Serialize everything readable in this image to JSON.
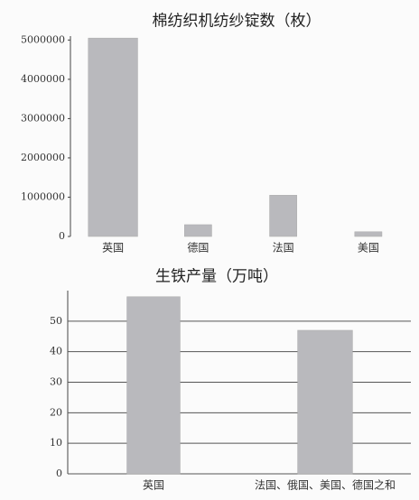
{
  "chart_data": [
    {
      "type": "bar",
      "title": "棉纺织机纺纱锭数（枚）",
      "categories": [
        "英国",
        "德国",
        "法国",
        "美国"
      ],
      "values": [
        5050000,
        300000,
        1050000,
        120000
      ],
      "color": "#b9b9bd",
      "ylim": [
        0,
        5100000
      ],
      "yticks": [
        0,
        1000000,
        2000000,
        3000000,
        4000000,
        5000000
      ],
      "grid": false
    },
    {
      "type": "bar",
      "title": "生铁产量（万吨）",
      "categories": [
        "英国",
        "法国、俄国、美国、德国之和"
      ],
      "values": [
        58,
        47
      ],
      "color": "#b9b9bd",
      "ylim": [
        0,
        60
      ],
      "yticks": [
        0,
        10,
        20,
        30,
        40,
        50
      ],
      "grid": true
    }
  ]
}
